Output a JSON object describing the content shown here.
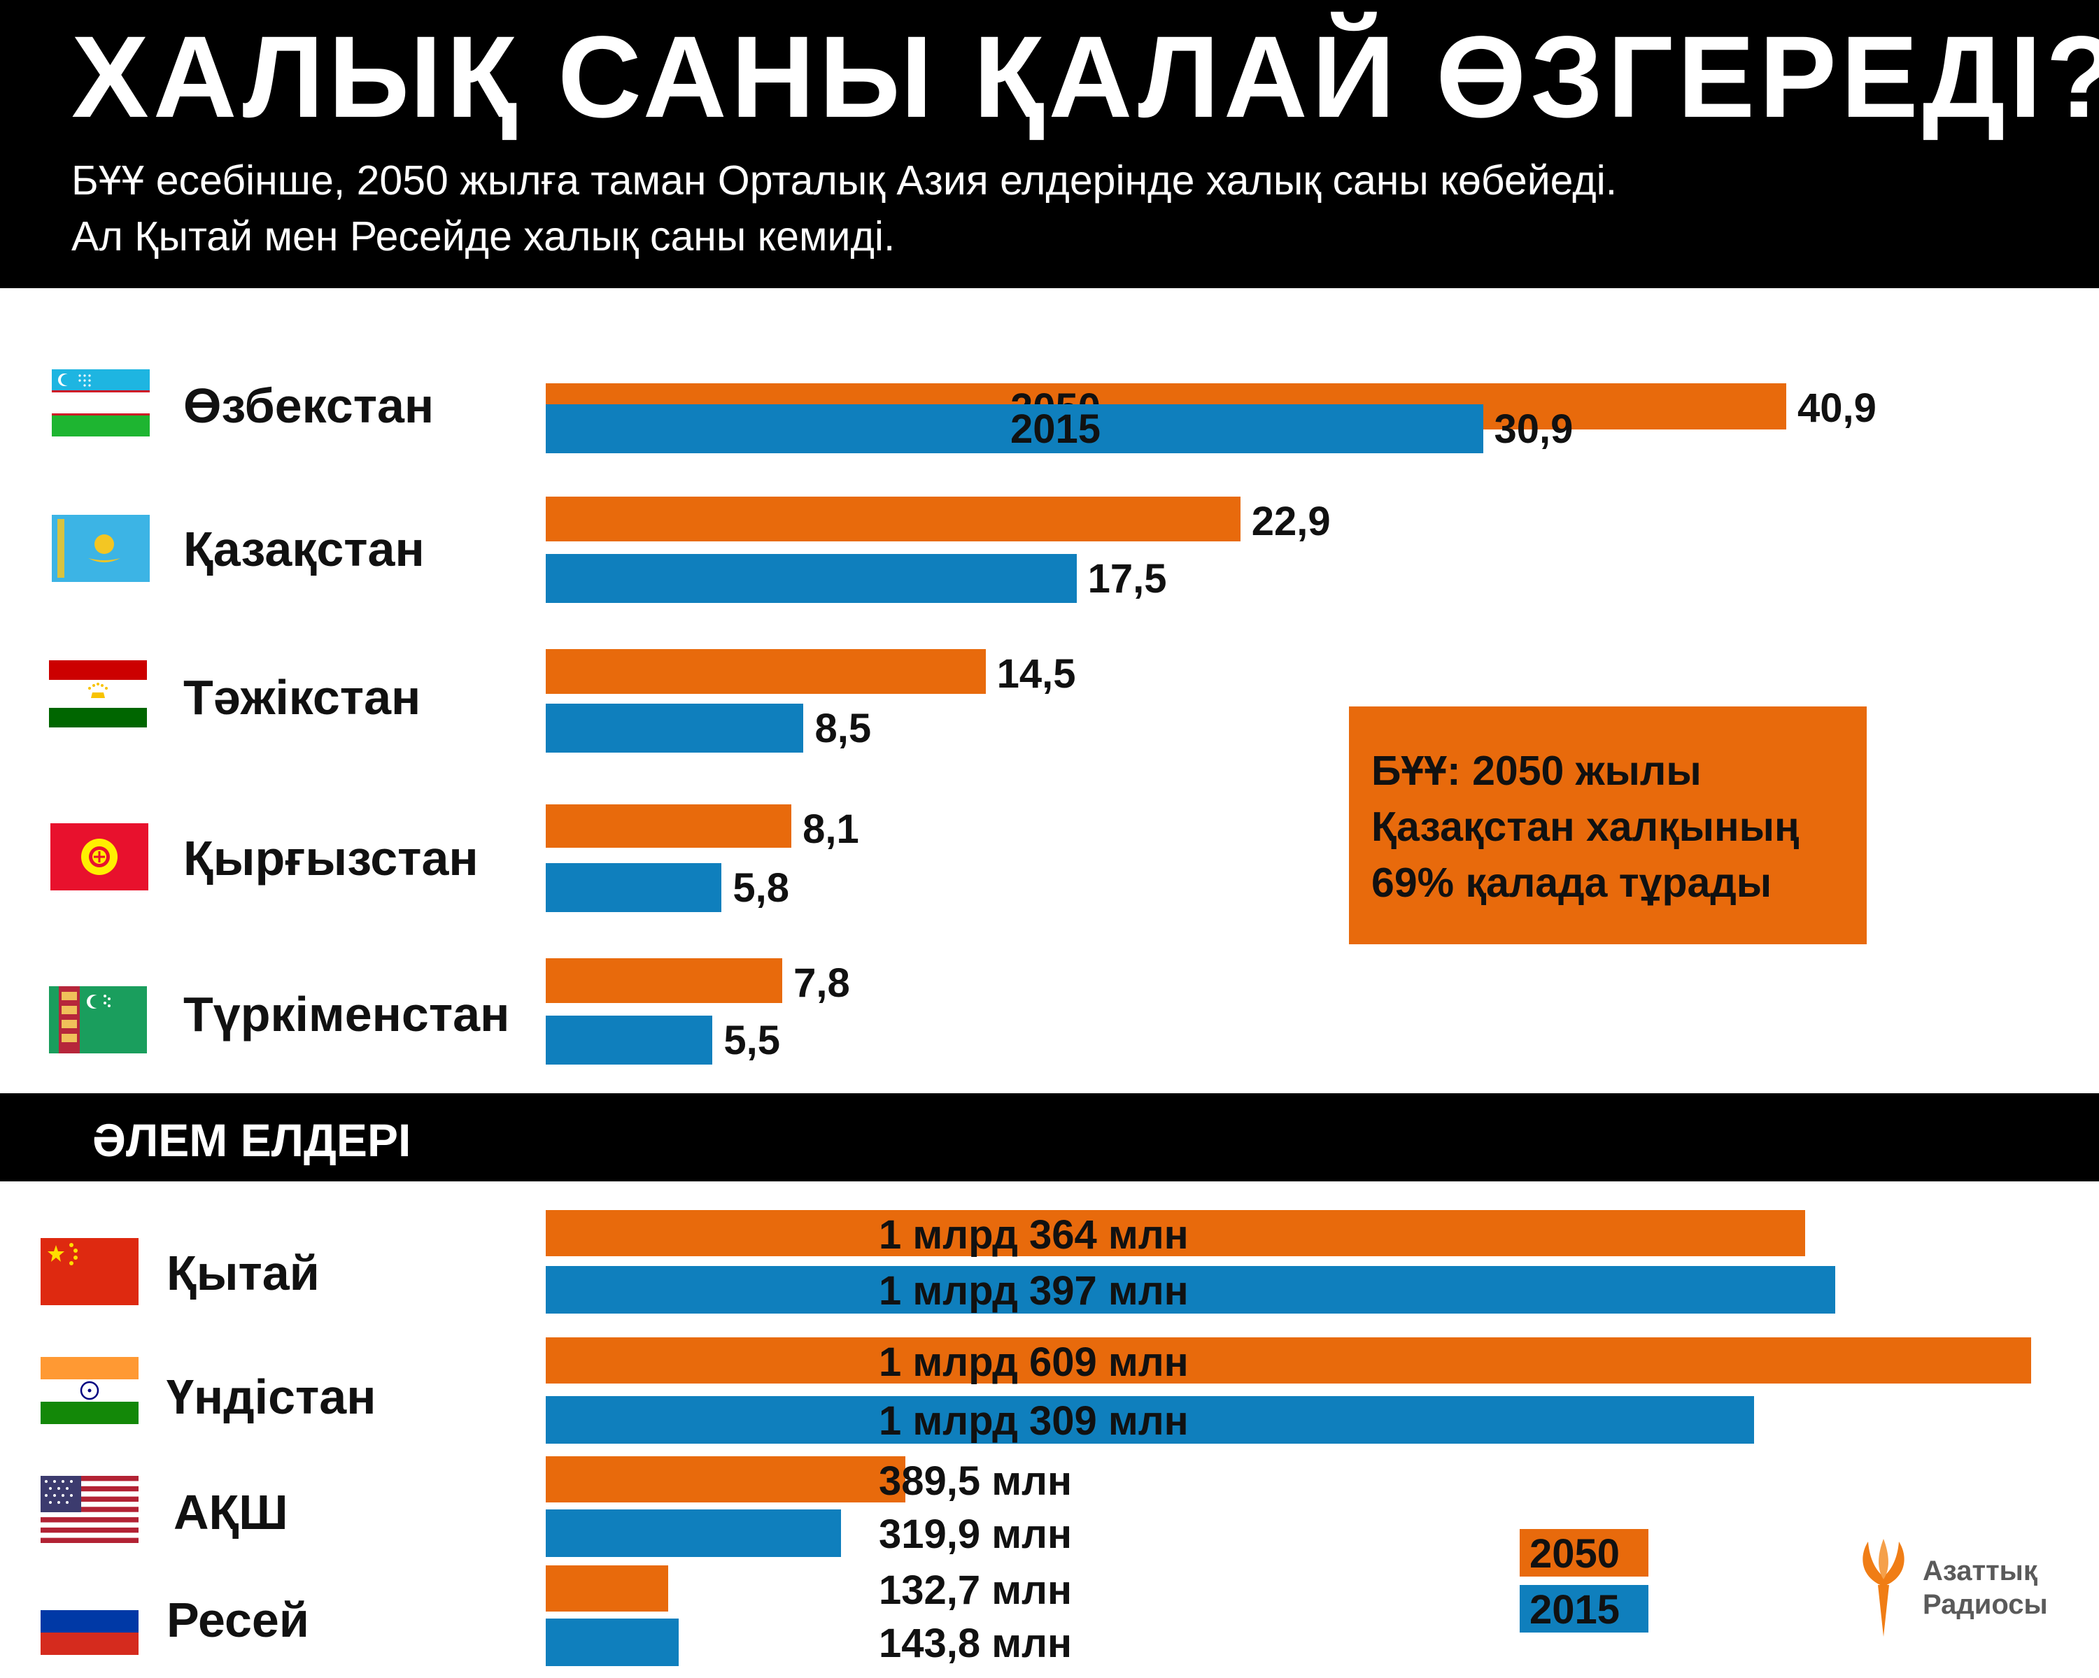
{
  "title": "ХАЛЫҚ САНЫ ҚАЛАЙ ӨЗГЕРЕДІ?",
  "subtitle": [
    "БҰҰ есебінше, 2050 жылға таман Орталық Азия елдерінде халық саны көбейеді.",
    "Ал Қытай мен Ресейде халық саны кемиді."
  ],
  "colors": {
    "y2050": "#e86a0c",
    "y2015": "#0f7fbd",
    "header": "#000000"
  },
  "chart_data": [
    {
      "type": "bar",
      "orientation": "horizontal",
      "categories": [
        "Өзбекстан",
        "Қазақстан",
        "Тәжікстан",
        "Қырғызстан",
        "Түркіменстан"
      ],
      "series": [
        {
          "name": "2050",
          "values": [
            40.9,
            22.9,
            14.5,
            8.1,
            7.8
          ],
          "labels": [
            "40,9",
            "22,9",
            "14,5",
            "8,1",
            "7,8"
          ]
        },
        {
          "name": "2015",
          "values": [
            30.9,
            17.5,
            8.5,
            5.8,
            5.5
          ],
          "labels": [
            "30,9",
            "17,5",
            "8,5",
            "5,8",
            "5,5"
          ]
        }
      ]
    },
    {
      "type": "bar",
      "orientation": "horizontal",
      "title": "ӘЛЕМ ЕЛДЕРІ",
      "categories": [
        "Қытай",
        "Үндістан",
        "АҚШ",
        "Ресей"
      ],
      "series": [
        {
          "name": "2050",
          "values": [
            1364,
            1609,
            389.5,
            132.7
          ],
          "labels": [
            "1 млрд 364 млн",
            "1 млрд 609 млн",
            "389,5 млн",
            "132,7 млн"
          ]
        },
        {
          "name": "2015",
          "values": [
            1397,
            1309,
            319.9,
            143.8
          ],
          "labels": [
            "1 млрд 397 млн",
            "1 млрд 309 млн",
            "319,9 млн",
            "143,8 млн"
          ]
        }
      ]
    }
  ],
  "flags": [
    "uzbekistan-flag-icon",
    "kazakhstan-flag-icon",
    "tajikistan-flag-icon",
    "kyrgyzstan-flag-icon",
    "turkmenistan-flag-icon",
    "china-flag-icon",
    "india-flag-icon",
    "usa-flag-icon",
    "russia-flag-icon"
  ],
  "note": [
    "БҰҰ: 2050 жылы",
    "Қазақстан халқының",
    "69% қалада тұрады"
  ],
  "legend": [
    "2050",
    "2015"
  ],
  "logo": [
    "Азаттық",
    "Радиосы"
  ]
}
